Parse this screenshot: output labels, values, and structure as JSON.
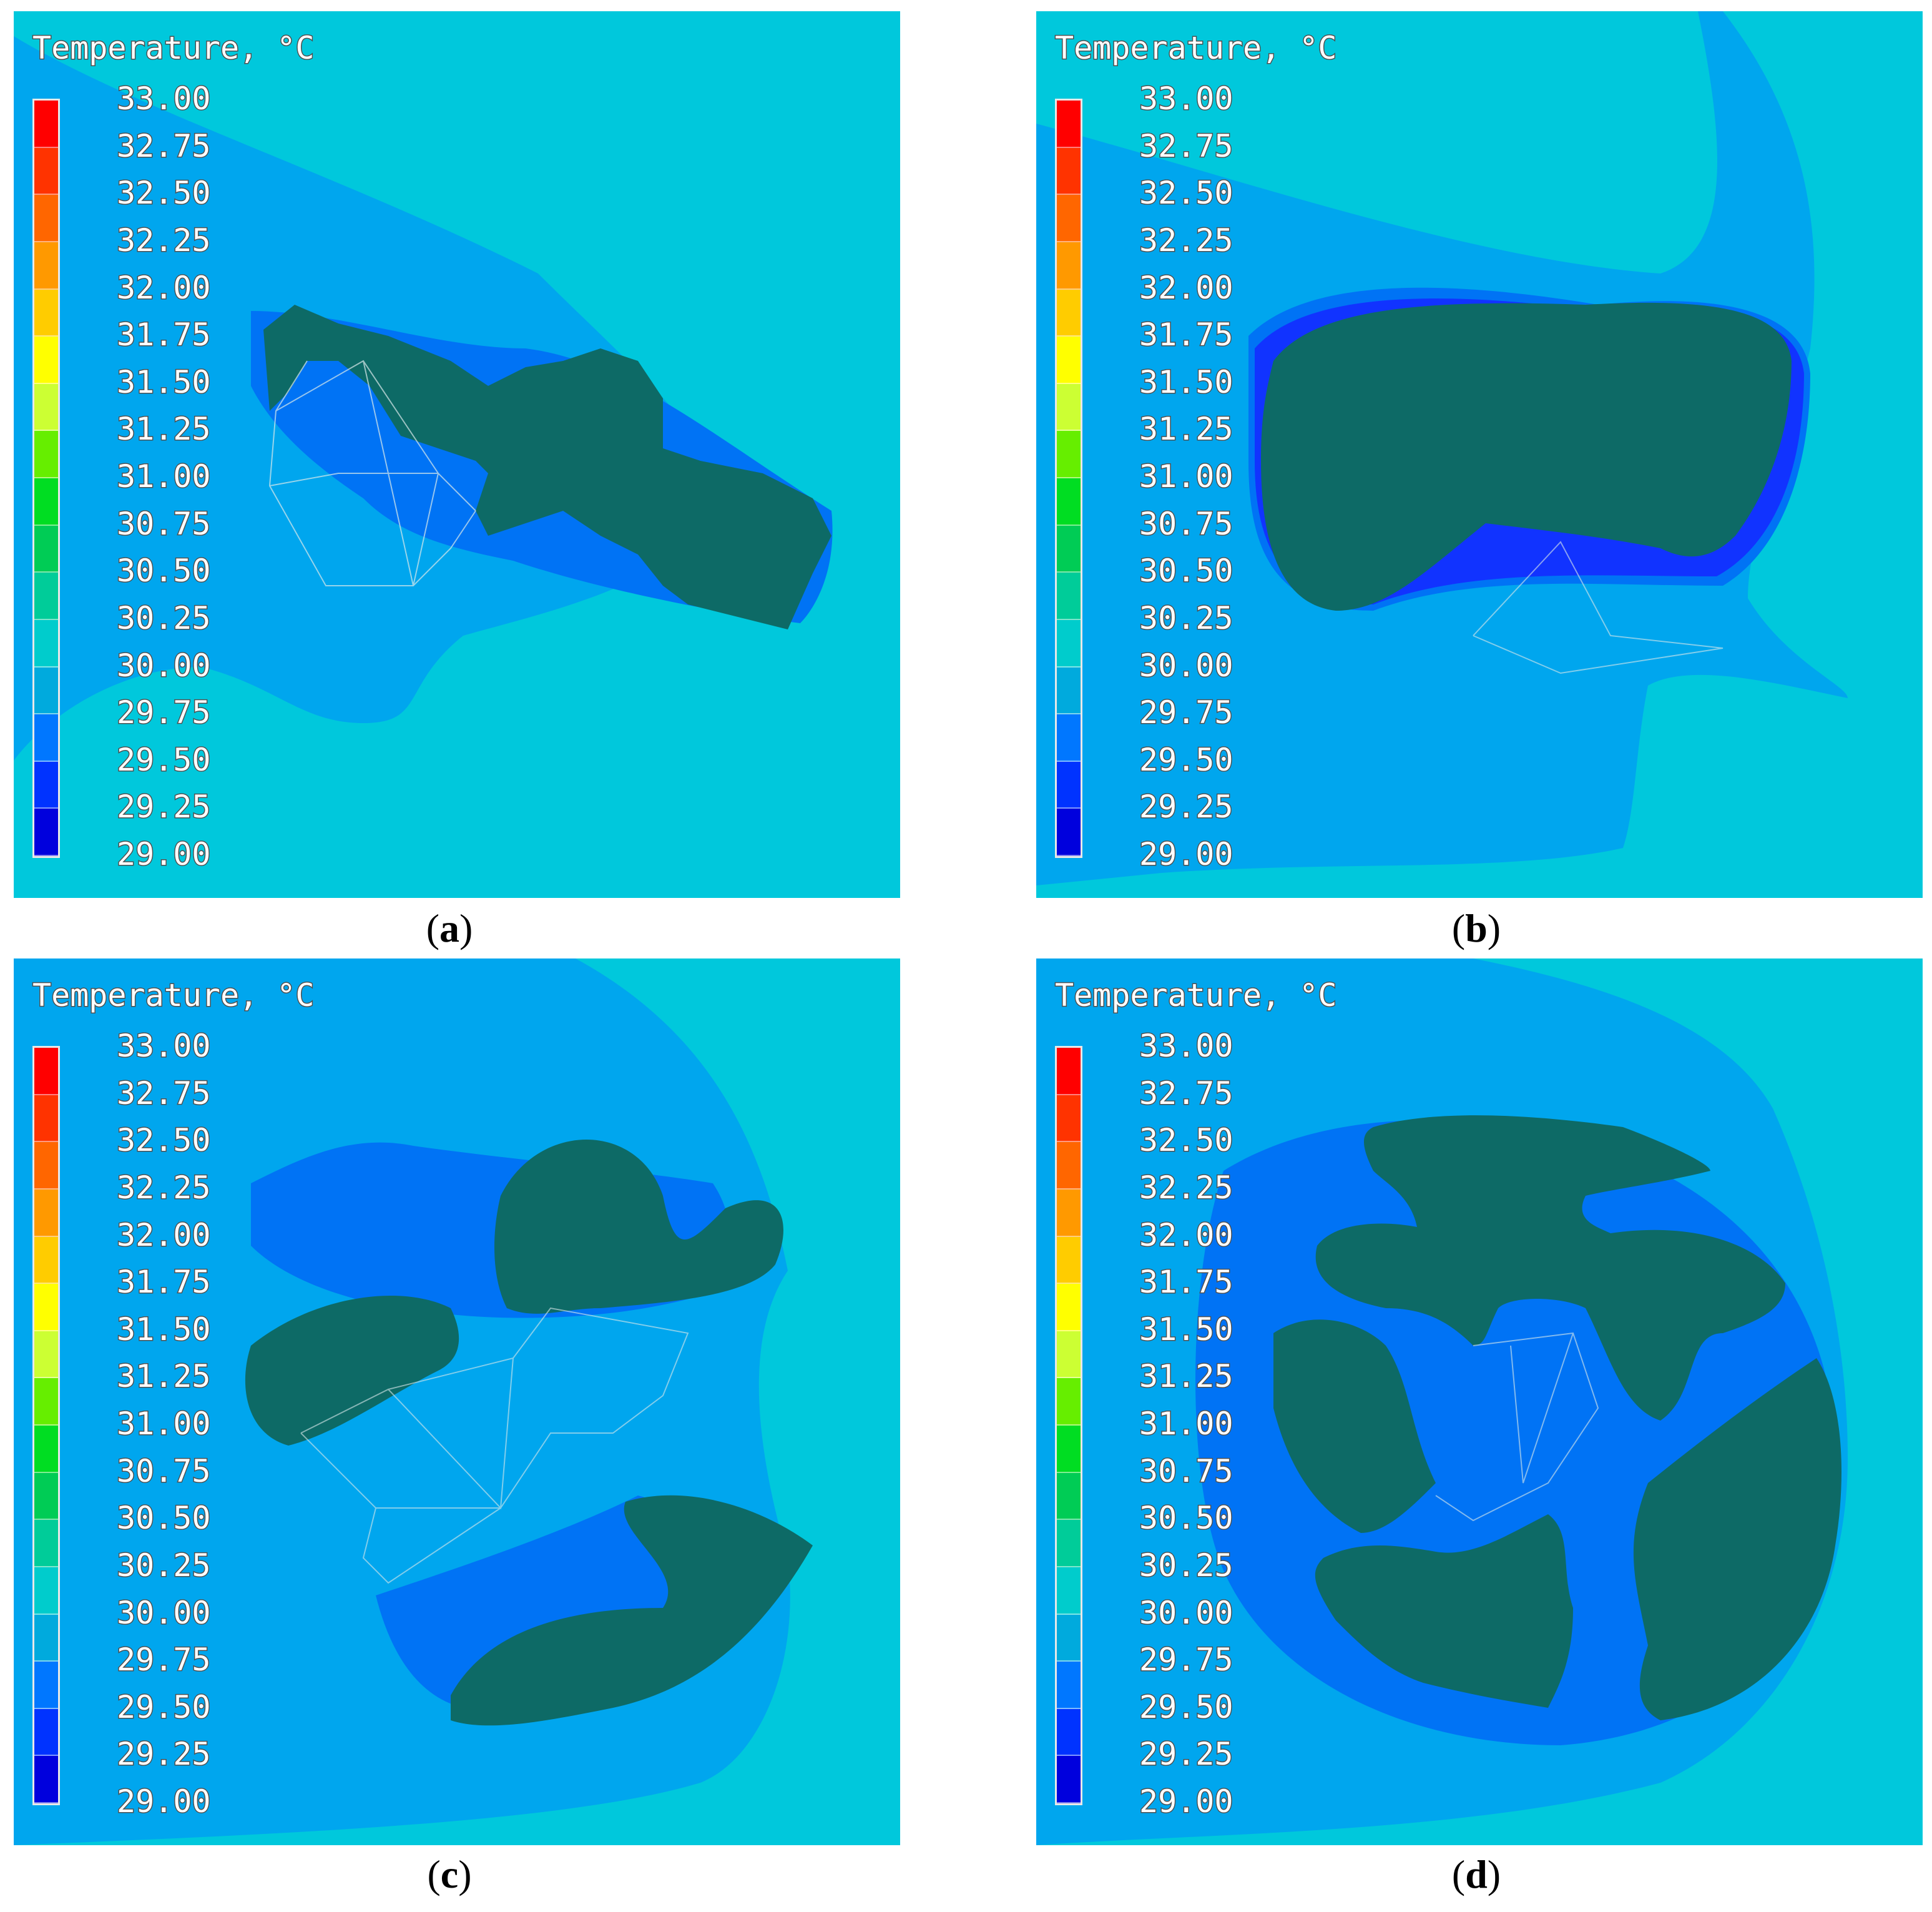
{
  "chart_data": [
    {
      "type": "heatmap",
      "panel": "a",
      "caption_letter": "a",
      "legend_title": "Temperature, °C",
      "colorbar_ticks": [
        "33.00",
        "32.75",
        "32.50",
        "32.25",
        "32.00",
        "31.75",
        "31.50",
        "31.25",
        "31.00",
        "30.75",
        "30.50",
        "30.25",
        "30.00",
        "29.75",
        "29.50",
        "29.25",
        "29.00"
      ],
      "range": [
        29.0,
        33.0
      ],
      "step": 0.25
    },
    {
      "type": "heatmap",
      "panel": "b",
      "caption_letter": "b",
      "legend_title": "Temperature, °C",
      "colorbar_ticks": [
        "33.00",
        "32.75",
        "32.50",
        "32.25",
        "32.00",
        "31.75",
        "31.50",
        "31.25",
        "31.00",
        "30.75",
        "30.50",
        "30.25",
        "30.00",
        "29.75",
        "29.50",
        "29.25",
        "29.00"
      ],
      "range": [
        29.0,
        33.0
      ],
      "step": 0.25
    },
    {
      "type": "heatmap",
      "panel": "c",
      "caption_letter": "c",
      "legend_title": "Temperature, °C",
      "colorbar_ticks": [
        "33.00",
        "32.75",
        "32.50",
        "32.25",
        "32.00",
        "31.75",
        "31.50",
        "31.25",
        "31.00",
        "30.75",
        "30.50",
        "30.25",
        "30.00",
        "29.75",
        "29.50",
        "29.25",
        "29.00"
      ],
      "range": [
        29.0,
        33.0
      ],
      "step": 0.25
    },
    {
      "type": "heatmap",
      "panel": "d",
      "caption_letter": "d",
      "legend_title": "Temperature, °C",
      "colorbar_ticks": [
        "33.00",
        "32.75",
        "32.50",
        "32.25",
        "32.00",
        "31.75",
        "31.50",
        "31.25",
        "31.00",
        "30.75",
        "30.50",
        "30.25",
        "30.00",
        "29.75",
        "29.50",
        "29.25",
        "29.00"
      ],
      "range": [
        29.0,
        33.0
      ],
      "step": 0.25
    }
  ],
  "colors": {
    "colorbar": [
      "#ff0000",
      "#ff3300",
      "#ff6600",
      "#ff9900",
      "#ffcc00",
      "#ffff00",
      "#ccff33",
      "#66ee00",
      "#00dd22",
      "#00cc55",
      "#00cc99",
      "#00cccc",
      "#00aadd",
      "#0077ff",
      "#0033ff",
      "#0000dd"
    ],
    "background_cyan": "#00c8dc",
    "field_blue": "#00a6ee",
    "contour_blue": "#0073f5",
    "cold_blue": "#1133ff",
    "solid": "#0d6a66"
  }
}
